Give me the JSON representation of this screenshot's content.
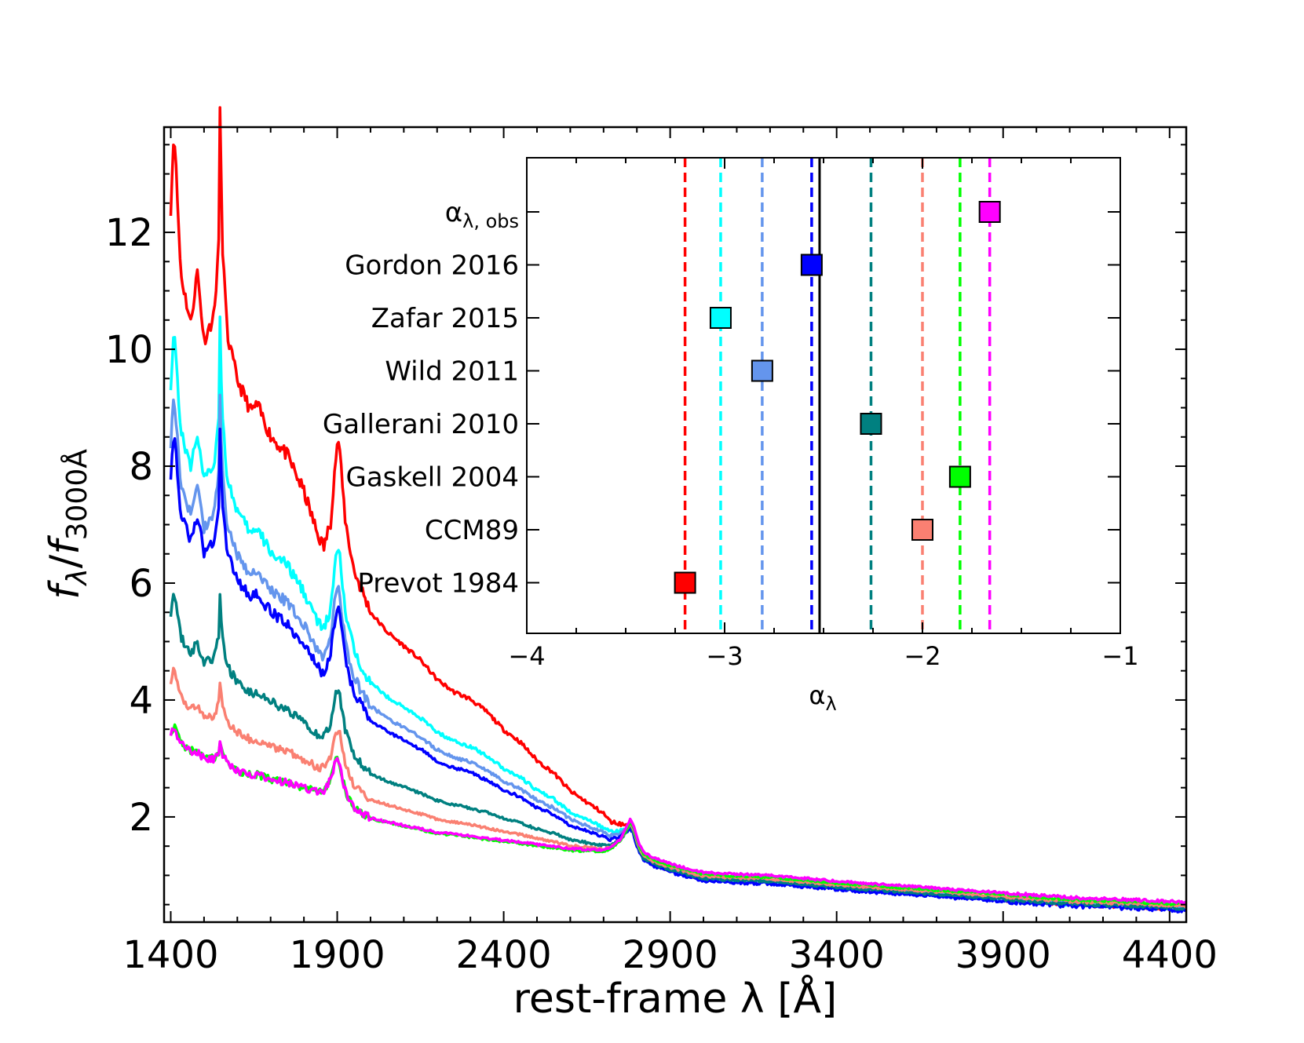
{
  "chart_data": [
    {
      "type": "line",
      "name": "main-spectra",
      "xlabel": "rest-frame λ [Å]",
      "ylabel": "f_λ / f_3000Å",
      "ylabel_parts": {
        "f1": "f",
        "sub1": "λ",
        "slash": "/",
        "f2": "f",
        "sub2": "3000Å"
      },
      "xlim": [
        1380,
        4450
      ],
      "ylim": [
        0.2,
        13.8
      ],
      "xticks": [
        1400,
        1900,
        2400,
        2900,
        3400,
        3900,
        4400
      ],
      "yticks": [
        2,
        4,
        6,
        8,
        10,
        12
      ],
      "grid": false,
      "shared_shape": {
        "x": [
          1400,
          1410,
          1430,
          1460,
          1480,
          1500,
          1530,
          1545,
          1549,
          1553,
          1570,
          1600,
          1640,
          1660,
          1700,
          1750,
          1800,
          1840,
          1860,
          1880,
          1895,
          1905,
          1912,
          1925,
          1950,
          2000,
          2050,
          2100,
          2150,
          2200,
          2250,
          2300,
          2350,
          2400,
          2450,
          2500,
          2550,
          2600,
          2650,
          2700,
          2720,
          2750,
          2780,
          2790,
          2800,
          2810,
          2820,
          2850,
          2900,
          2950,
          3000,
          3100,
          3200,
          3300,
          3400,
          3500,
          3600,
          3700,
          3800,
          3900,
          4000,
          4100,
          4200,
          4300,
          4400,
          4450
        ],
        "norm": [
          1.0,
          1.15,
          0.9,
          0.82,
          0.92,
          0.8,
          0.85,
          0.98,
          1.3,
          1.0,
          0.82,
          0.75,
          0.7,
          0.71,
          0.66,
          0.63,
          0.57,
          0.5,
          0.47,
          0.5,
          0.58,
          0.62,
          0.58,
          0.52,
          0.46,
          0.4,
          0.37,
          0.35,
          0.33,
          0.3,
          0.28,
          0.27,
          0.25,
          0.22,
          0.2,
          0.17,
          0.15,
          0.12,
          0.1,
          0.08,
          0.06,
          0.04,
          0.0,
          0.0,
          0.0,
          0.0,
          0.0,
          0.0,
          0.0,
          0.0,
          0.0,
          0.0,
          0.0,
          0.0,
          0.0,
          0.0,
          0.0,
          0.0,
          0.0,
          0.0,
          0.0,
          0.0,
          0.0,
          0.0,
          0.0,
          0.0
        ],
        "base": [
          2.9,
          2.9,
          2.75,
          2.65,
          2.6,
          2.55,
          2.5,
          2.55,
          2.6,
          2.55,
          2.45,
          2.35,
          2.3,
          2.3,
          2.25,
          2.2,
          2.15,
          2.1,
          2.15,
          2.3,
          2.6,
          2.6,
          2.4,
          2.1,
          1.85,
          1.7,
          1.65,
          1.6,
          1.55,
          1.5,
          1.48,
          1.45,
          1.42,
          1.4,
          1.38,
          1.35,
          1.33,
          1.3,
          1.3,
          1.3,
          1.35,
          1.5,
          1.85,
          1.75,
          1.55,
          1.4,
          1.3,
          1.2,
          1.1,
          1.02,
          0.95,
          0.92,
          0.9,
          0.85,
          0.8,
          0.76,
          0.72,
          0.68,
          0.64,
          0.6,
          0.56,
          0.52,
          0.5,
          0.48,
          0.45,
          0.44
        ]
      },
      "series": [
        {
          "name": "Prevot 1984",
          "color": "#ff0000",
          "amp": 9.5,
          "xoff": 0.0
        },
        {
          "name": "Zafar 2015",
          "color": "#00ffff",
          "amp": 6.5,
          "xoff": 0.0
        },
        {
          "name": "Wild 2011",
          "color": "#6495ed",
          "amp": 5.5,
          "xoff": 0.0
        },
        {
          "name": "Gordon 2016",
          "color": "#0000ff",
          "amp": 5.0,
          "xoff": -0.04
        },
        {
          "name": "Gallerani 2010",
          "color": "#008080",
          "amp": 2.6,
          "xoff": 0.0
        },
        {
          "name": "CCM89",
          "color": "#fa8072",
          "amp": 1.4,
          "xoff": 0.04
        },
        {
          "name": "Gaskell 2004",
          "color": "#00ff00",
          "amp": 0.5,
          "xoff": 0.07
        },
        {
          "name": "α_λ,obs",
          "color": "#ff00ff",
          "amp": 0.45,
          "xoff": 0.1
        }
      ]
    },
    {
      "type": "scatter",
      "name": "inset-slopes",
      "xlabel": "α_λ",
      "xlim": [
        -4,
        -1
      ],
      "xticks": [
        -4,
        -3,
        -2,
        -1
      ],
      "xtick_labels": [
        "−4",
        "−3",
        "−2",
        "−1"
      ],
      "reference_line": {
        "x": -2.52,
        "color": "#000000"
      },
      "categories": [
        {
          "label_main": "α",
          "label_sub": "λ, obs",
          "value": -1.66,
          "color": "#ff00ff"
        },
        {
          "label_main": "Gordon 2016",
          "label_sub": "",
          "value": -2.56,
          "color": "#0000ff"
        },
        {
          "label_main": "Zafar 2015",
          "label_sub": "",
          "value": -3.02,
          "color": "#00ffff"
        },
        {
          "label_main": "Wild 2011",
          "label_sub": "",
          "value": -2.81,
          "color": "#6495ed"
        },
        {
          "label_main": "Gallerani 2010",
          "label_sub": "",
          "value": -2.26,
          "color": "#008080"
        },
        {
          "label_main": "Gaskell 2004",
          "label_sub": "",
          "value": -1.81,
          "color": "#00ff00"
        },
        {
          "label_main": "CCM89",
          "label_sub": "",
          "value": -2.0,
          "color": "#fa8072"
        },
        {
          "label_main": "Prevot 1984",
          "label_sub": "",
          "value": -3.2,
          "color": "#ff0000"
        }
      ]
    }
  ]
}
